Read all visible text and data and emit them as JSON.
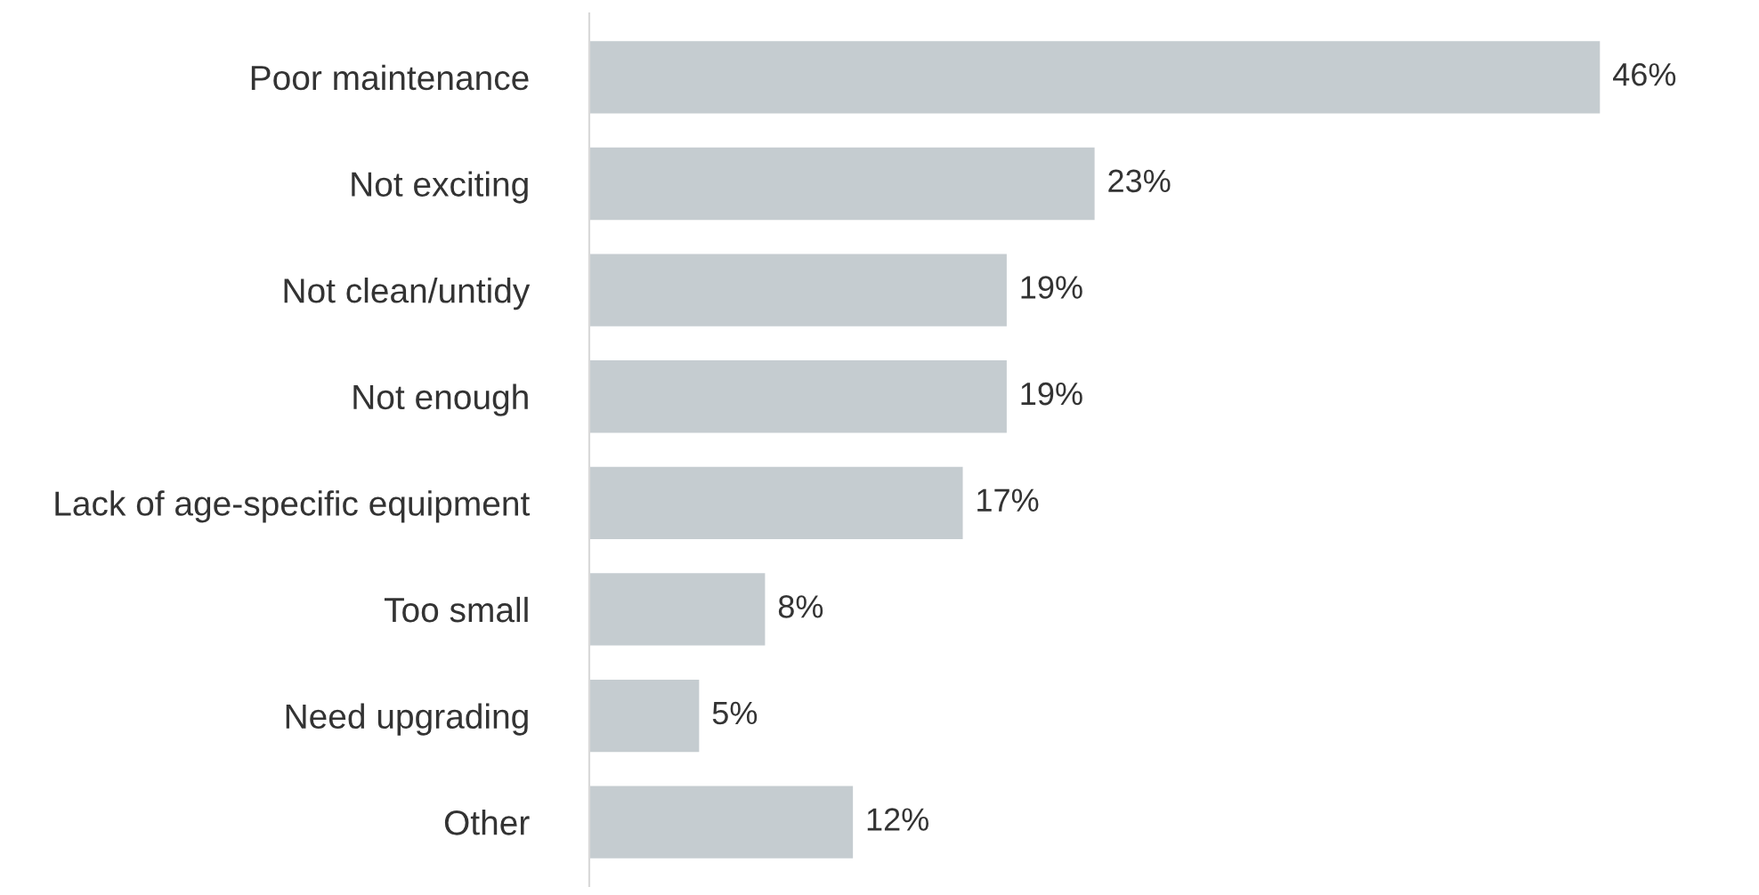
{
  "chart_data": {
    "type": "bar",
    "orientation": "horizontal",
    "categories": [
      "Poor maintenance",
      "Not exciting",
      "Not clean/untidy",
      "Not enough",
      "Lack of age-specific equipment",
      "Too small",
      "Need upgrading",
      "Other"
    ],
    "values": [
      46,
      23,
      19,
      19,
      17,
      8,
      5,
      12
    ],
    "value_labels": [
      "46%",
      "23%",
      "19%",
      "19%",
      "17%",
      "8%",
      "5%",
      "12%"
    ],
    "color": "#c5ccd0",
    "grid": false,
    "legend": false
  }
}
